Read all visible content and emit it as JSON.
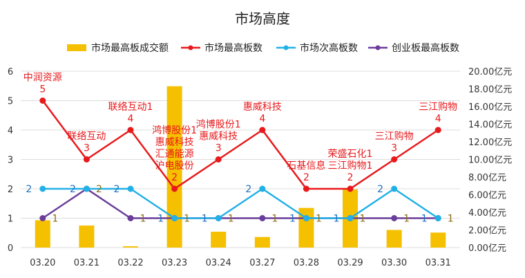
{
  "chart_data": {
    "type": "line",
    "title": "市场高度",
    "categories": [
      "03.20",
      "03.21",
      "03.22",
      "03.23",
      "03.24",
      "03.27",
      "03.28",
      "03.29",
      "03.30",
      "03.31"
    ],
    "ylim_left": [
      0,
      6
    ],
    "yticks_left": [
      "0",
      "1",
      "2",
      "3",
      "4",
      "5",
      "6"
    ],
    "ylim_right": [
      0,
      20
    ],
    "yticks_right": [
      "0.00亿元",
      "2.00亿元",
      "4.00亿元",
      "6.00亿元",
      "8.00亿元",
      "10.00亿元",
      "12.00亿元",
      "14.00亿元",
      "16.00亿元",
      "18.00亿元",
      "20.00亿元"
    ],
    "grid": true,
    "legend_position": "top",
    "bar_series": {
      "name": "市场最高板成交额",
      "color": "#f5c000",
      "values": [
        3.1,
        2.5,
        0.15,
        18.3,
        1.8,
        1.2,
        4.5,
        6.6,
        2.0,
        1.7
      ]
    },
    "series": [
      {
        "name": "市场最高板数",
        "color": "#e8191c",
        "values": [
          5,
          3,
          4,
          2,
          3,
          4,
          2,
          2,
          3,
          4
        ],
        "point_labels": [
          [
            "中润资源"
          ],
          [
            "联络互动"
          ],
          [
            "联络互动1"
          ],
          [
            "鸿博股份1",
            "惠威科技",
            "汇通能源",
            "沪电股份"
          ],
          [
            "鸿博股份1",
            "惠威科技"
          ],
          [
            "惠威科技"
          ],
          [
            "石基信息"
          ],
          [
            "荣盛石化1",
            "三江购物1"
          ],
          [
            "三江购物"
          ],
          [
            "三江购物"
          ]
        ],
        "value_labels": [
          "5",
          "3",
          "4",
          "2",
          "3",
          "4",
          "2",
          "2",
          "3",
          "4"
        ]
      },
      {
        "name": "市场次高板数",
        "color": "#22b0e6",
        "values": [
          2,
          2,
          2,
          1,
          1,
          2,
          1,
          1,
          2,
          1
        ],
        "value_labels": [
          "2",
          "2",
          "2",
          "1",
          "1",
          "2",
          "1",
          "1",
          "2",
          "1"
        ]
      },
      {
        "name": "创业板最高板数",
        "color": "#6a3d9a",
        "values": [
          1,
          2,
          1,
          1,
          1,
          1,
          1,
          1,
          1,
          1
        ],
        "value_labels": [
          "1",
          "2",
          "1",
          "1",
          "1",
          "1",
          "1",
          "1",
          "1",
          "1"
        ]
      }
    ]
  }
}
